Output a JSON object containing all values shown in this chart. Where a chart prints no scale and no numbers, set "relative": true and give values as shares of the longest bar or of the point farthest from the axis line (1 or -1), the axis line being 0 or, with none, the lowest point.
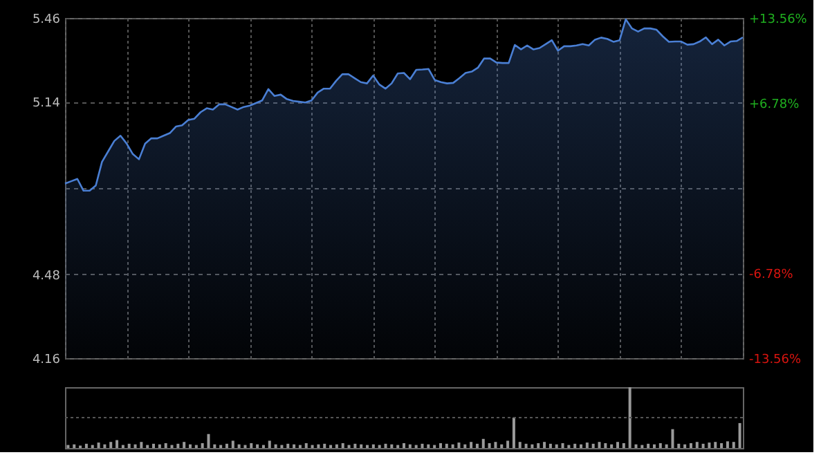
{
  "chart_data": [
    {
      "type": "area",
      "categories": [
        null,
        null,
        null,
        null,
        null,
        null,
        null,
        null,
        null,
        null,
        null,
        null,
        null,
        null,
        null,
        null,
        null,
        null,
        null,
        null,
        null,
        null,
        null,
        null,
        null,
        null,
        null,
        null,
        null,
        null,
        null,
        null,
        null,
        null,
        null,
        null,
        null,
        null,
        null,
        null,
        null,
        null,
        null,
        null,
        null,
        null,
        null,
        null,
        null,
        null,
        null,
        null,
        null,
        null,
        null,
        null,
        null,
        null,
        null,
        null,
        null,
        null,
        null,
        null,
        null,
        null,
        null,
        null,
        null,
        null,
        null,
        null,
        null,
        null,
        null,
        null,
        null,
        null,
        null,
        null,
        null,
        null,
        null,
        null,
        null,
        null,
        null,
        null,
        null,
        null,
        null,
        null,
        null,
        null,
        null,
        null,
        null,
        null,
        null,
        null,
        null,
        null,
        null,
        null,
        null,
        null,
        null,
        null,
        null,
        null,
        null
      ],
      "series": [
        {
          "color": "#4a7fd4",
          "values": [
            4.827,
            4.836,
            4.845,
            4.8,
            4.8,
            4.82,
            4.91,
            4.95,
            4.99,
            5.01,
            4.98,
            4.94,
            4.92,
            4.98,
            5.0,
            5.0,
            5.01,
            5.02,
            5.045,
            5.05,
            5.07,
            5.075,
            5.1,
            5.115,
            5.11,
            5.13,
            5.13,
            5.12,
            5.11,
            5.12,
            5.125,
            5.135,
            5.145,
            5.188,
            5.162,
            5.167,
            5.15,
            5.143,
            5.14,
            5.137,
            5.145,
            5.175,
            5.19,
            5.19,
            5.22,
            5.245,
            5.245,
            5.23,
            5.215,
            5.21,
            5.24,
            5.206,
            5.19,
            5.21,
            5.248,
            5.25,
            5.226,
            5.262,
            5.263,
            5.265,
            5.223,
            5.215,
            5.21,
            5.212,
            5.23,
            5.25,
            5.255,
            5.27,
            5.305,
            5.305,
            5.29,
            5.288,
            5.288,
            5.357,
            5.34,
            5.355,
            5.34,
            5.345,
            5.36,
            5.375,
            5.335,
            5.352,
            5.352,
            5.355,
            5.36,
            5.355,
            5.377,
            5.385,
            5.38,
            5.369,
            5.375,
            5.455,
            5.42,
            5.408,
            5.42,
            5.42,
            5.415,
            5.39,
            5.369,
            5.37,
            5.37,
            5.358,
            5.36,
            5.37,
            5.386,
            5.36,
            5.377,
            5.355,
            5.37,
            5.372,
            5.386
          ]
        }
      ],
      "ylim": [
        4.16,
        5.46
      ],
      "yticks": [
        5.46,
        5.14,
        {
          "value": 4.81,
          "label": null
        },
        4.48,
        4.16
      ],
      "y2lim": [
        -13.56,
        13.56
      ],
      "y2ticks": [
        {
          "value": 13.56,
          "label": "+13.56%"
        },
        {
          "value": 6.78,
          "label": "+6.78%"
        },
        {
          "value": 0,
          "label": null
        },
        {
          "value": -6.78,
          "label": "-6.78%"
        },
        {
          "value": -13.56,
          "label": "-13.56%"
        }
      ],
      "grid": true
    },
    {
      "type": "bar",
      "relative": true,
      "categories": [
        null,
        null,
        null,
        null,
        null,
        null,
        null,
        null,
        null,
        null,
        null,
        null,
        null,
        null,
        null,
        null,
        null,
        null,
        null,
        null,
        null,
        null,
        null,
        null,
        null,
        null,
        null,
        null,
        null,
        null,
        null,
        null,
        null,
        null,
        null,
        null,
        null,
        null,
        null,
        null,
        null,
        null,
        null,
        null,
        null,
        null,
        null,
        null,
        null,
        null,
        null,
        null,
        null,
        null,
        null,
        null,
        null,
        null,
        null,
        null,
        null,
        null,
        null,
        null,
        null,
        null,
        null,
        null,
        null,
        null,
        null,
        null,
        null,
        null,
        null,
        null,
        null,
        null,
        null,
        null,
        null,
        null,
        null,
        null,
        null,
        null,
        null,
        null,
        null,
        null,
        null,
        null,
        null,
        null,
        null,
        null,
        null,
        null,
        null,
        null,
        null,
        null,
        null,
        null,
        null,
        null,
        null,
        null,
        null,
        null,
        null
      ],
      "series": [
        {
          "color": "#9a9a9a",
          "values": [
            0.05,
            0.06,
            0.04,
            0.07,
            0.05,
            0.09,
            0.06,
            0.1,
            0.13,
            0.05,
            0.07,
            0.06,
            0.1,
            0.05,
            0.07,
            0.06,
            0.08,
            0.05,
            0.07,
            0.1,
            0.06,
            0.05,
            0.08,
            0.23,
            0.06,
            0.05,
            0.07,
            0.12,
            0.06,
            0.05,
            0.08,
            0.06,
            0.05,
            0.12,
            0.06,
            0.05,
            0.07,
            0.06,
            0.05,
            0.08,
            0.05,
            0.06,
            0.07,
            0.05,
            0.06,
            0.08,
            0.05,
            0.07,
            0.06,
            0.05,
            0.06,
            0.05,
            0.07,
            0.06,
            0.05,
            0.08,
            0.06,
            0.05,
            0.07,
            0.06,
            0.05,
            0.08,
            0.07,
            0.06,
            0.09,
            0.06,
            0.1,
            0.07,
            0.15,
            0.08,
            0.1,
            0.06,
            0.12,
            0.5,
            0.1,
            0.07,
            0.06,
            0.08,
            0.1,
            0.07,
            0.06,
            0.08,
            0.05,
            0.07,
            0.06,
            0.09,
            0.07,
            0.1,
            0.08,
            0.06,
            0.1,
            0.08,
            1.0,
            0.06,
            0.05,
            0.07,
            0.06,
            0.08,
            0.06,
            0.31,
            0.07,
            0.06,
            0.08,
            0.1,
            0.07,
            0.09,
            0.1,
            0.08,
            0.11,
            0.1,
            0.41
          ]
        }
      ],
      "ref_lines": [
        {
          "axis": "y",
          "value": 0.5,
          "line_style": "dotted"
        }
      ]
    }
  ]
}
